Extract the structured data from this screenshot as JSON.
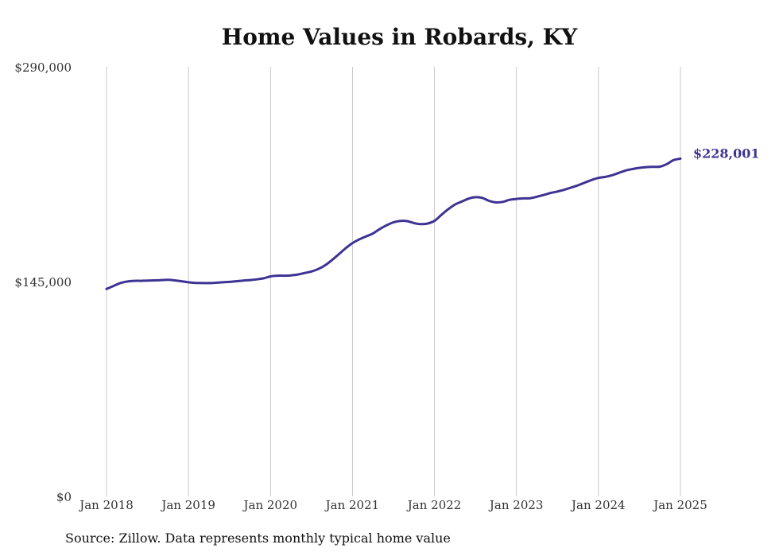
{
  "chart_data": {
    "type": "line",
    "title": "Home Values in Robards, KY",
    "xlabel": "",
    "ylabel": "",
    "x_ticks": [
      "Jan 2018",
      "Jan 2019",
      "Jan 2020",
      "Jan 2021",
      "Jan 2022",
      "Jan 2023",
      "Jan 2024",
      "Jan 2025"
    ],
    "y_ticks": [
      "$0",
      "$145,000",
      "$290,000"
    ],
    "ylim": [
      0,
      290000
    ],
    "grid": "vertical",
    "legend": "none",
    "end_label": "$228,001",
    "line_color": "#3d3393",
    "series": [
      {
        "values": [
          140000,
          142000,
          144000,
          145000,
          145500,
          145500,
          145700,
          145800,
          146000,
          146200,
          145800,
          145200,
          144500,
          144100,
          144000,
          144000,
          144200,
          144500,
          144800,
          145200,
          145700,
          146000,
          146500,
          147200,
          148500,
          149000,
          149000,
          149200,
          149800,
          150800,
          151800,
          153500,
          156000,
          159500,
          163500,
          167500,
          171000,
          173500,
          175500,
          177500,
          180500,
          183000,
          185000,
          186000,
          185800,
          184500,
          183800,
          184200,
          186000,
          190000,
          193800,
          197000,
          199000,
          201000,
          202000,
          201500,
          199500,
          198500,
          198800,
          200200,
          200800,
          201200,
          201300,
          202300,
          203500,
          204800,
          205800,
          207000,
          208500,
          210000,
          211800,
          213600,
          215000,
          215700,
          216800,
          218400,
          220000,
          221000,
          221800,
          222300,
          222500,
          222600,
          224300,
          227000,
          228001
        ]
      }
    ]
  },
  "source": "Source: Zillow. Data represents monthly typical home value"
}
